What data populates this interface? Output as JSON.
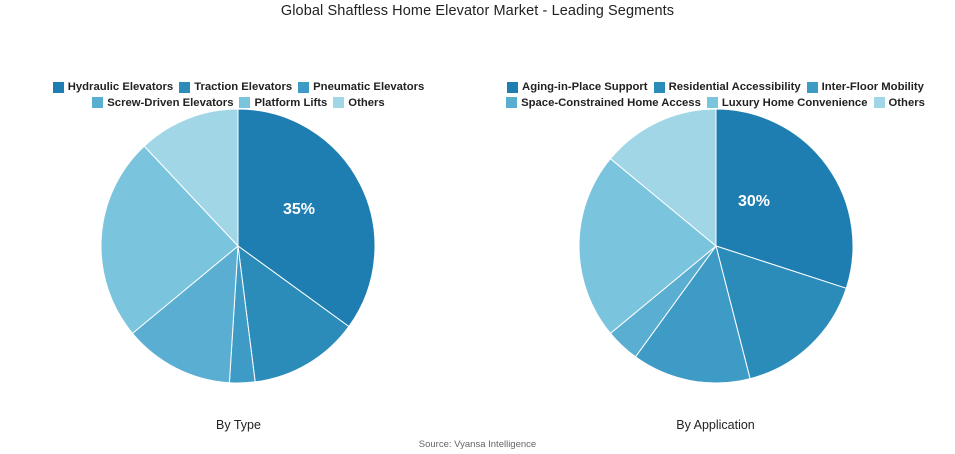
{
  "title": "Global Shaftless Home Elevator Market - Leading Segments",
  "source": "Source: Vyansa Intelligence",
  "chart_data": [
    {
      "type": "pie",
      "caption": "By Type",
      "categories": [
        "Hydraulic Elevators",
        "Traction Elevators",
        "Pneumatic Elevators",
        "Screw-Driven Elevators",
        "Platform Lifts",
        "Others"
      ],
      "values": [
        35,
        13,
        3,
        13,
        24,
        12
      ],
      "colors": [
        "#1e7eb1",
        "#2b8cb9",
        "#3e9bc6",
        "#5aaed1",
        "#7bc4dd",
        "#a1d6e6"
      ],
      "data_labels": [
        "35%",
        "",
        "",
        "",
        "",
        ""
      ],
      "legend_rows": [
        3,
        3
      ]
    },
    {
      "type": "pie",
      "caption": "By Application",
      "categories": [
        "Aging-in-Place Support",
        "Residential Accessibility",
        "Inter-Floor Mobility",
        "Space-Constrained Home Access",
        "Luxury Home Convenience",
        "Others"
      ],
      "values": [
        30,
        16,
        14,
        4,
        22,
        14
      ],
      "colors": [
        "#1e7eb1",
        "#2b8cb9",
        "#3e9bc6",
        "#5aaed1",
        "#7bc4dd",
        "#a1d6e6"
      ],
      "data_labels": [
        "30%",
        "",
        "",
        "",
        "",
        ""
      ],
      "legend_rows": [
        3,
        3
      ]
    }
  ]
}
